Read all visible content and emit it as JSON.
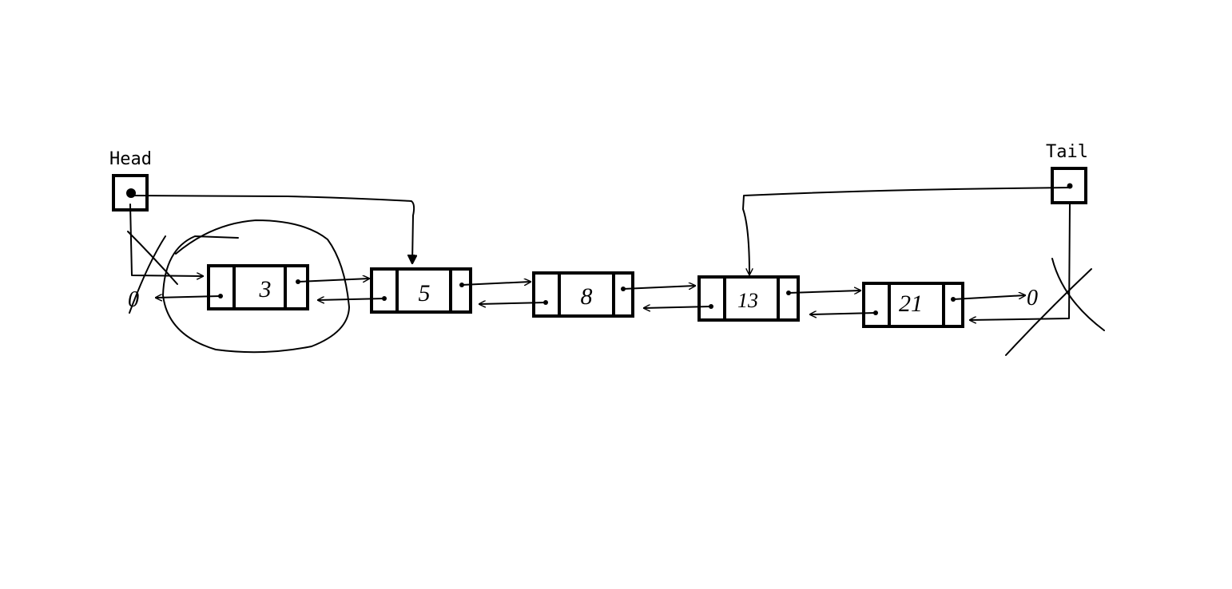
{
  "diagram": {
    "head": {
      "label": "Head"
    },
    "tail": {
      "label": "Tail"
    },
    "null_symbol": "0",
    "nodes": [
      {
        "value": "3",
        "removed": true
      },
      {
        "value": "5"
      },
      {
        "value": "8"
      },
      {
        "value": "13"
      },
      {
        "value": "21"
      }
    ]
  }
}
